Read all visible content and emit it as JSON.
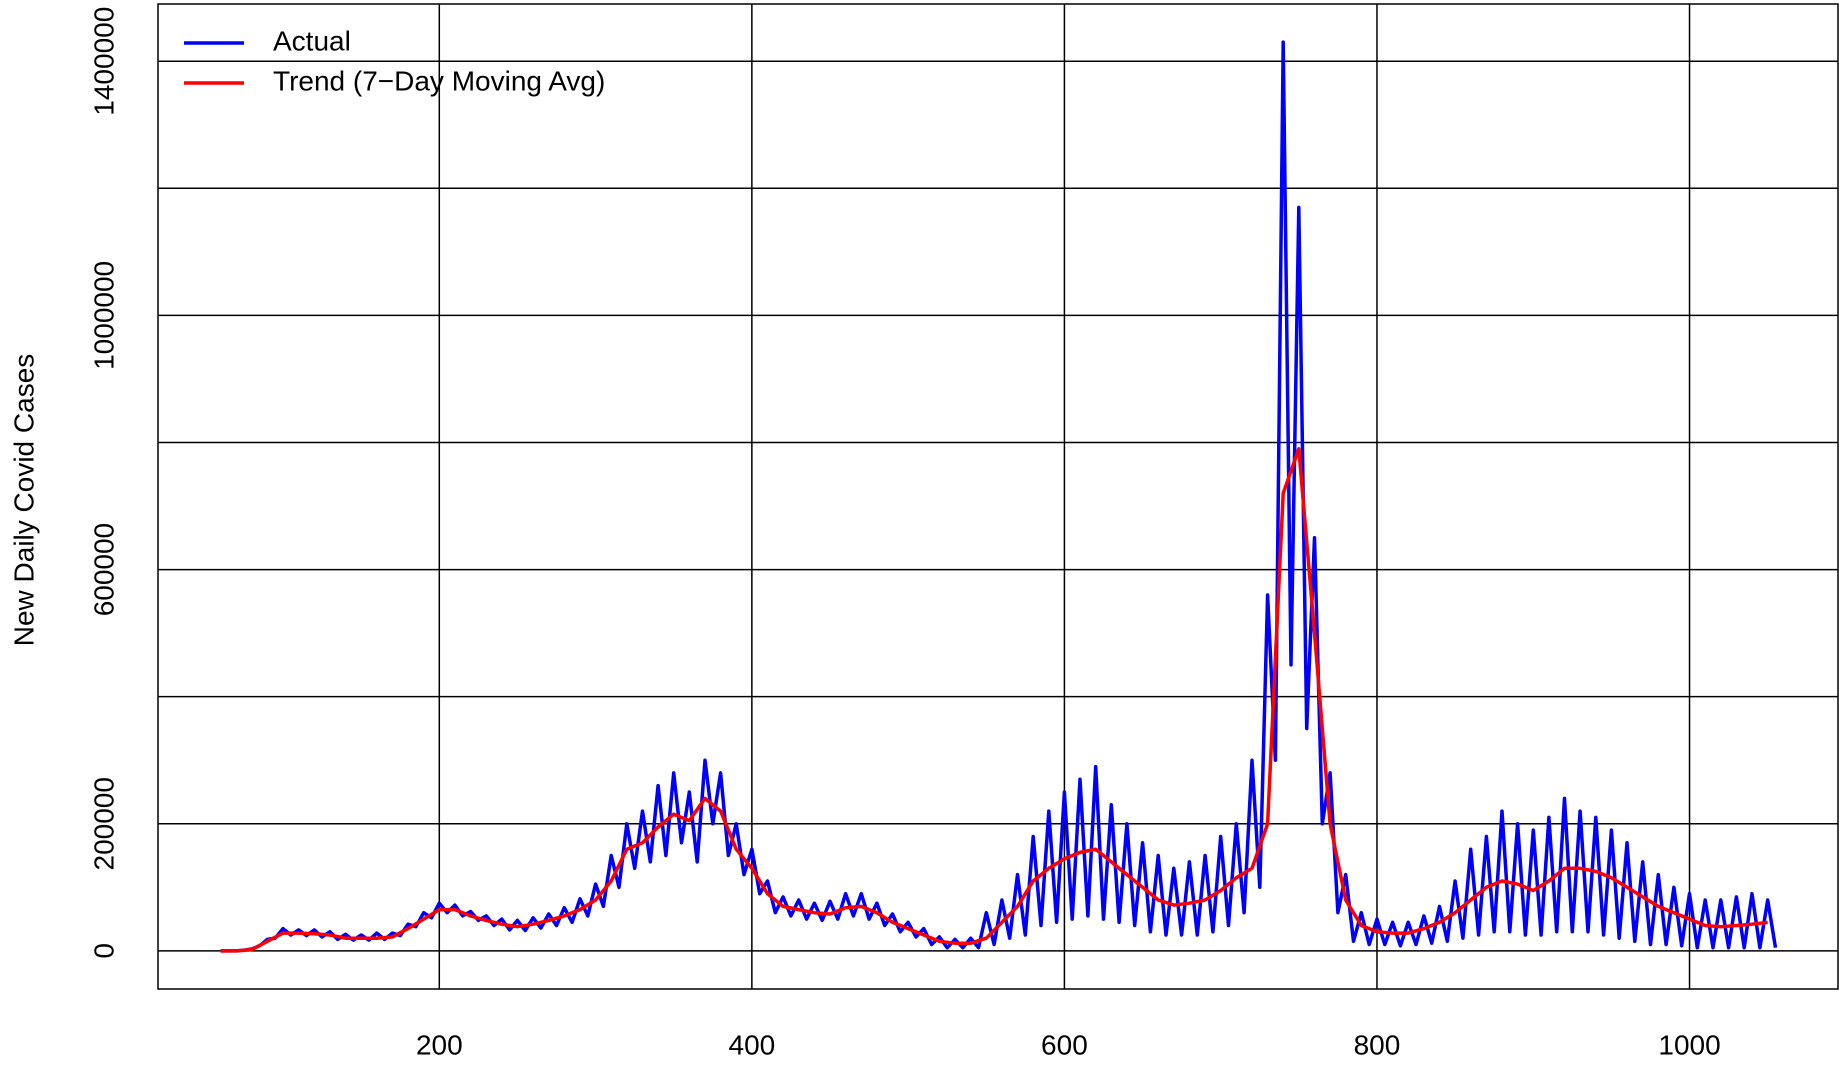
{
  "chart_data": {
    "type": "line",
    "ylabel": "New Daily Covid Cases",
    "xlim": [
      20,
      1095
    ],
    "ylim": [
      -60000,
      1490000
    ],
    "xticks": [
      200,
      400,
      600,
      800,
      1000
    ],
    "yticks": [
      0,
      200000,
      600000,
      1000000,
      1400000
    ],
    "ygrid": [
      0,
      200000,
      400000,
      600000,
      800000,
      1000000,
      1200000,
      1400000
    ],
    "grid": true,
    "legend": "top-left",
    "series": [
      {
        "name": "Actual",
        "color": "#0000ff",
        "x": [
          60,
          65,
          70,
          75,
          80,
          85,
          90,
          95,
          100,
          105,
          110,
          115,
          120,
          125,
          130,
          135,
          140,
          145,
          150,
          155,
          160,
          165,
          170,
          175,
          180,
          185,
          190,
          195,
          200,
          205,
          210,
          215,
          220,
          225,
          230,
          235,
          240,
          245,
          250,
          255,
          260,
          265,
          270,
          275,
          280,
          285,
          290,
          295,
          300,
          305,
          310,
          315,
          320,
          325,
          330,
          335,
          340,
          345,
          350,
          355,
          360,
          365,
          370,
          375,
          380,
          385,
          390,
          395,
          400,
          405,
          410,
          415,
          420,
          425,
          430,
          435,
          440,
          445,
          450,
          455,
          460,
          465,
          470,
          475,
          480,
          485,
          490,
          495,
          500,
          505,
          510,
          515,
          520,
          525,
          530,
          535,
          540,
          545,
          550,
          555,
          560,
          565,
          570,
          575,
          580,
          585,
          590,
          595,
          600,
          605,
          610,
          615,
          620,
          625,
          630,
          635,
          640,
          645,
          650,
          655,
          660,
          665,
          670,
          675,
          680,
          685,
          690,
          695,
          700,
          705,
          710,
          715,
          720,
          725,
          730,
          735,
          740,
          745,
          750,
          755,
          760,
          765,
          770,
          775,
          780,
          785,
          790,
          795,
          800,
          805,
          810,
          815,
          820,
          825,
          830,
          835,
          840,
          845,
          850,
          855,
          860,
          865,
          870,
          875,
          880,
          885,
          890,
          895,
          900,
          905,
          910,
          915,
          920,
          925,
          930,
          935,
          940,
          945,
          950,
          955,
          960,
          965,
          970,
          975,
          980,
          985,
          990,
          995,
          1000,
          1005,
          1010,
          1015,
          1020,
          1025,
          1030,
          1035,
          1040,
          1045,
          1050,
          1055
        ],
        "values": [
          0,
          0,
          0,
          1000,
          3000,
          8000,
          18000,
          20000,
          35000,
          25000,
          33000,
          24000,
          33000,
          22000,
          30000,
          18000,
          26000,
          17000,
          25000,
          17000,
          28000,
          18000,
          28000,
          24000,
          42000,
          38000,
          60000,
          52000,
          75000,
          60000,
          72000,
          55000,
          62000,
          48000,
          55000,
          40000,
          50000,
          33000,
          48000,
          32000,
          52000,
          36000,
          58000,
          40000,
          68000,
          45000,
          82000,
          55000,
          105000,
          70000,
          150000,
          100000,
          200000,
          130000,
          220000,
          140000,
          260000,
          150000,
          280000,
          170000,
          250000,
          140000,
          300000,
          200000,
          280000,
          150000,
          200000,
          120000,
          160000,
          90000,
          110000,
          60000,
          85000,
          55000,
          80000,
          50000,
          75000,
          48000,
          78000,
          50000,
          90000,
          55000,
          90000,
          50000,
          75000,
          40000,
          58000,
          30000,
          45000,
          22000,
          35000,
          10000,
          22000,
          5000,
          18000,
          5000,
          20000,
          5000,
          60000,
          10000,
          80000,
          20000,
          120000,
          25000,
          180000,
          40000,
          220000,
          45000,
          250000,
          50000,
          270000,
          55000,
          290000,
          50000,
          230000,
          45000,
          200000,
          40000,
          170000,
          30000,
          150000,
          25000,
          130000,
          25000,
          140000,
          25000,
          150000,
          30000,
          180000,
          40000,
          200000,
          60000,
          300000,
          100000,
          560000,
          300000,
          1430000,
          450000,
          1170000,
          350000,
          650000,
          200000,
          280000,
          60000,
          120000,
          15000,
          60000,
          10000,
          50000,
          10000,
          45000,
          8000,
          45000,
          10000,
          55000,
          12000,
          70000,
          15000,
          110000,
          20000,
          160000,
          25000,
          180000,
          30000,
          220000,
          30000,
          200000,
          25000,
          190000,
          25000,
          210000,
          30000,
          240000,
          30000,
          220000,
          30000,
          210000,
          25000,
          190000,
          20000,
          170000,
          15000,
          140000,
          10000,
          120000,
          10000,
          100000,
          8000,
          90000,
          5000,
          80000,
          5000,
          80000,
          5000,
          85000,
          5000,
          90000,
          5000,
          80000,
          5000
        ]
      },
      {
        "name": "Trend (7−Day Moving Avg)",
        "color": "#ff0000",
        "x": [
          60,
          70,
          80,
          90,
          100,
          110,
          120,
          130,
          140,
          150,
          160,
          170,
          180,
          190,
          200,
          210,
          220,
          230,
          240,
          250,
          260,
          270,
          280,
          290,
          300,
          310,
          320,
          330,
          340,
          350,
          360,
          370,
          380,
          390,
          400,
          410,
          420,
          430,
          440,
          450,
          460,
          470,
          480,
          490,
          500,
          510,
          520,
          530,
          540,
          550,
          560,
          570,
          580,
          590,
          600,
          610,
          620,
          630,
          640,
          650,
          660,
          670,
          680,
          690,
          700,
          710,
          720,
          730,
          740,
          750,
          760,
          770,
          780,
          790,
          800,
          810,
          820,
          830,
          840,
          850,
          860,
          870,
          880,
          890,
          900,
          910,
          920,
          930,
          940,
          950,
          960,
          970,
          980,
          990,
          1000,
          1010,
          1020,
          1030,
          1040,
          1050
        ],
        "values": [
          0,
          0,
          2000,
          15000,
          28000,
          28000,
          27000,
          25000,
          20000,
          20000,
          20000,
          22000,
          35000,
          50000,
          65000,
          65000,
          55000,
          48000,
          42000,
          38000,
          42000,
          48000,
          55000,
          65000,
          80000,
          110000,
          160000,
          170000,
          195000,
          215000,
          205000,
          240000,
          220000,
          160000,
          130000,
          90000,
          70000,
          65000,
          60000,
          58000,
          68000,
          70000,
          60000,
          45000,
          35000,
          25000,
          15000,
          12000,
          12000,
          20000,
          45000,
          70000,
          110000,
          130000,
          145000,
          155000,
          160000,
          140000,
          120000,
          100000,
          80000,
          72000,
          75000,
          80000,
          95000,
          115000,
          130000,
          200000,
          720000,
          790000,
          500000,
          200000,
          80000,
          40000,
          30000,
          28000,
          28000,
          35000,
          45000,
          60000,
          80000,
          100000,
          110000,
          105000,
          95000,
          110000,
          130000,
          130000,
          125000,
          115000,
          100000,
          85000,
          70000,
          60000,
          50000,
          40000,
          38000,
          40000,
          42000,
          45000
        ]
      }
    ]
  }
}
